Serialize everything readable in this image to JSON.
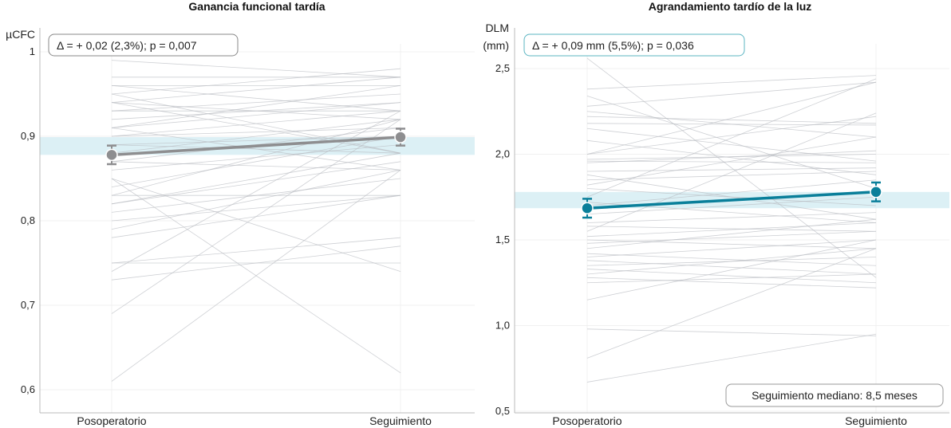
{
  "chart_data": [
    {
      "type": "line",
      "title": "Ganancia funcional tardía",
      "ylabel": "µCFC",
      "ylim": [
        0.6,
        1.0
      ],
      "yticks": [
        {
          "v": 0.6,
          "label": "0,6"
        },
        {
          "v": 0.7,
          "label": "0,7"
        },
        {
          "v": 0.8,
          "label": "0,8"
        },
        {
          "v": 0.9,
          "label": "0,9"
        },
        {
          "v": 1.0,
          "label": "1"
        }
      ],
      "categories": [
        "Posoperatorio",
        "Seguimiento"
      ],
      "annotation": "Δ = + 0,02 (2,3%); p = 0,007",
      "mean": {
        "values": [
          0.878,
          0.899
        ],
        "err": [
          0.011,
          0.01
        ],
        "color": "#8e8e90"
      },
      "band": [
        0.878,
        0.899
      ],
      "individual": [
        [
          0.99,
          0.97
        ],
        [
          0.97,
          0.97
        ],
        [
          0.96,
          0.93
        ],
        [
          0.96,
          0.96
        ],
        [
          0.95,
          0.98
        ],
        [
          0.95,
          0.88
        ],
        [
          0.94,
          0.97
        ],
        [
          0.94,
          0.92
        ],
        [
          0.93,
          0.95
        ],
        [
          0.93,
          0.93
        ],
        [
          0.92,
          0.94
        ],
        [
          0.91,
          0.94
        ],
        [
          0.91,
          0.96
        ],
        [
          0.9,
          0.93
        ],
        [
          0.9,
          0.91
        ],
        [
          0.89,
          0.88
        ],
        [
          0.89,
          0.9
        ],
        [
          0.88,
          0.92
        ],
        [
          0.87,
          0.91
        ],
        [
          0.87,
          0.86
        ],
        [
          0.86,
          0.89
        ],
        [
          0.85,
          0.74
        ],
        [
          0.85,
          0.62
        ],
        [
          0.84,
          0.9
        ],
        [
          0.83,
          0.92
        ],
        [
          0.83,
          0.83
        ],
        [
          0.82,
          0.88
        ],
        [
          0.82,
          0.87
        ],
        [
          0.81,
          0.85
        ],
        [
          0.8,
          0.83
        ],
        [
          0.79,
          0.86
        ],
        [
          0.78,
          0.83
        ],
        [
          0.75,
          0.75
        ],
        [
          0.75,
          0.78
        ],
        [
          0.74,
          0.93
        ],
        [
          0.73,
          0.77
        ],
        [
          0.69,
          0.92
        ],
        [
          0.61,
          0.86
        ],
        [
          0.94,
          0.88
        ],
        [
          0.91,
          0.86
        ]
      ]
    },
    {
      "type": "line",
      "title": "Agrandamiento tardío de la luz",
      "ylabel": "DLM",
      "ylabel2": "(mm)",
      "ylim": [
        0.5,
        2.6
      ],
      "yticks": [
        {
          "v": 0.5,
          "label": "0,5"
        },
        {
          "v": 1.0,
          "label": "1,0"
        },
        {
          "v": 1.5,
          "label": "1,5"
        },
        {
          "v": 2.0,
          "label": "2,0"
        },
        {
          "v": 2.5,
          "label": "2,5"
        }
      ],
      "categories": [
        "Posoperatorio",
        "Seguimiento"
      ],
      "annotation": "Δ = + 0,09 mm (5,5%); p = 0,036",
      "note": "Seguimiento mediano: 8,5 meses",
      "mean": {
        "values": [
          1.685,
          1.78
        ],
        "err": [
          0.055,
          0.055
        ],
        "color": "#0a7f9a"
      },
      "band": [
        1.685,
        1.78
      ],
      "individual": [
        [
          2.56,
          1.28
        ],
        [
          2.38,
          2.46
        ],
        [
          2.34,
          1.8
        ],
        [
          2.28,
          2.42
        ],
        [
          2.25,
          2.1
        ],
        [
          2.22,
          2.18
        ],
        [
          2.18,
          2.17
        ],
        [
          2.15,
          1.96
        ],
        [
          2.0,
          2.42
        ],
        [
          2.0,
          2.22
        ],
        [
          1.97,
          2.0
        ],
        [
          1.96,
          1.95
        ],
        [
          1.95,
          2.02
        ],
        [
          1.9,
          1.92
        ],
        [
          1.88,
          1.62
        ],
        [
          1.85,
          1.9
        ],
        [
          1.82,
          2.1
        ],
        [
          1.8,
          1.7
        ],
        [
          1.75,
          2.44
        ],
        [
          1.7,
          1.85
        ],
        [
          1.65,
          1.75
        ],
        [
          1.6,
          1.66
        ],
        [
          1.58,
          1.55
        ],
        [
          1.55,
          2.24
        ],
        [
          1.52,
          1.6
        ],
        [
          1.5,
          1.45
        ],
        [
          1.48,
          1.55
        ],
        [
          1.45,
          1.62
        ],
        [
          1.42,
          1.35
        ],
        [
          1.4,
          1.5
        ],
        [
          1.38,
          1.3
        ],
        [
          1.35,
          1.4
        ],
        [
          1.33,
          1.25
        ],
        [
          1.3,
          1.45
        ],
        [
          1.28,
          1.22
        ],
        [
          1.15,
          1.5
        ],
        [
          0.98,
          0.94
        ],
        [
          0.81,
          1.45
        ],
        [
          0.67,
          0.95
        ],
        [
          1.25,
          1.3
        ],
        [
          1.72,
          1.6
        ],
        [
          2.08,
          1.88
        ]
      ]
    }
  ]
}
